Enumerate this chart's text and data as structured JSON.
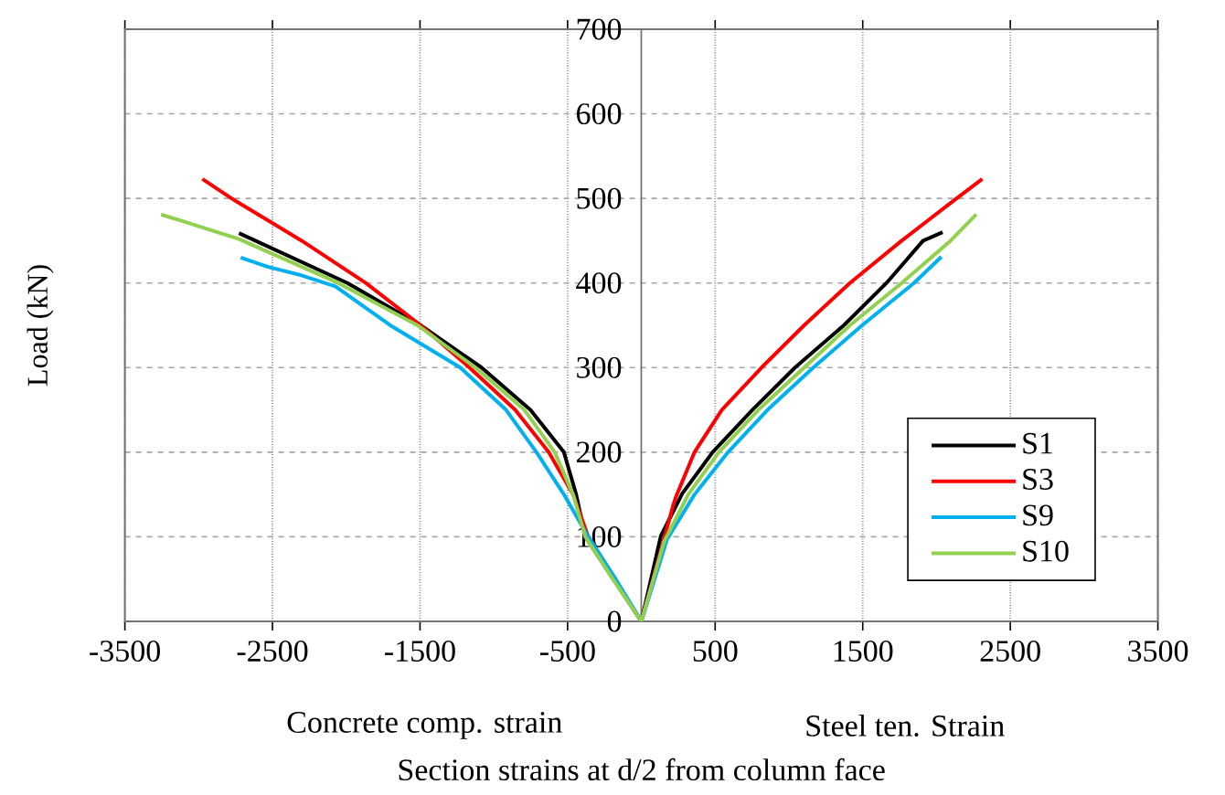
{
  "chart_data": {
    "type": "line",
    "xlabel": "Section strains at d/2 from column face",
    "ylabel": "Load (kN)",
    "annotations": [
      "Concrete comp. strain",
      "Steel ten. Strain"
    ],
    "xlim": [
      -3500,
      3500
    ],
    "xticks": [
      -3500,
      -2500,
      -1500,
      -500,
      500,
      1500,
      2500,
      3500
    ],
    "ylim": [
      0,
      700
    ],
    "yticks": [
      0,
      100,
      200,
      300,
      400,
      500,
      600,
      700
    ],
    "grid": true,
    "legend": "right",
    "marker": "none",
    "line_style": "solid",
    "series": [
      {
        "name": "S1",
        "color": "#000000",
        "x": [
          -2727,
          -1992,
          -1496,
          -1083,
          -752,
          -525,
          -442,
          -380,
          0,
          132,
          277,
          483,
          752,
          1041,
          1372,
          1661,
          1909,
          2041
        ],
        "values": [
          459,
          400,
          350,
          300,
          250,
          200,
          150,
          100,
          0,
          101,
          151,
          200,
          250,
          300,
          350,
          400,
          450,
          460
        ]
      },
      {
        "name": "S3",
        "color": "#ff0000",
        "x": [
          -2975,
          -2777,
          -2302,
          -1868,
          -1496,
          -1165,
          -855,
          -628,
          -463,
          -360,
          0,
          215,
          236,
          360,
          545,
          814,
          1103,
          1413,
          1764,
          2136,
          2310
        ],
        "values": [
          523,
          500,
          450,
          400,
          350,
          300,
          250,
          200,
          150,
          100,
          0,
          137,
          148,
          200,
          250,
          300,
          350,
          400,
          450,
          500,
          523
        ]
      },
      {
        "name": "S9",
        "color": "#00b0f0",
        "x": [
          -2715,
          -2529,
          -2322,
          -2074,
          -1702,
          -1227,
          -917,
          -711,
          -525,
          -360,
          -174,
          0,
          174,
          360,
          587,
          855,
          1165,
          1496,
          1847,
          2033
        ],
        "values": [
          430,
          419,
          410,
          396,
          350,
          300,
          250,
          200,
          150,
          100,
          50,
          0,
          97,
          150,
          200,
          250,
          300,
          350,
          400,
          431
        ]
      },
      {
        "name": "S10",
        "color": "#92d050",
        "x": [
          -3255,
          -3107,
          -2727,
          -2054,
          -1517,
          -1124,
          -793,
          -587,
          -463,
          -380,
          -194,
          0,
          153,
          318,
          525,
          793,
          1103,
          1413,
          1764,
          2095,
          2269
        ],
        "values": [
          481,
          473,
          452,
          400,
          350,
          300,
          250,
          200,
          150,
          100,
          50,
          0,
          94,
          150,
          200,
          250,
          300,
          350,
          400,
          450,
          481
        ]
      }
    ]
  }
}
